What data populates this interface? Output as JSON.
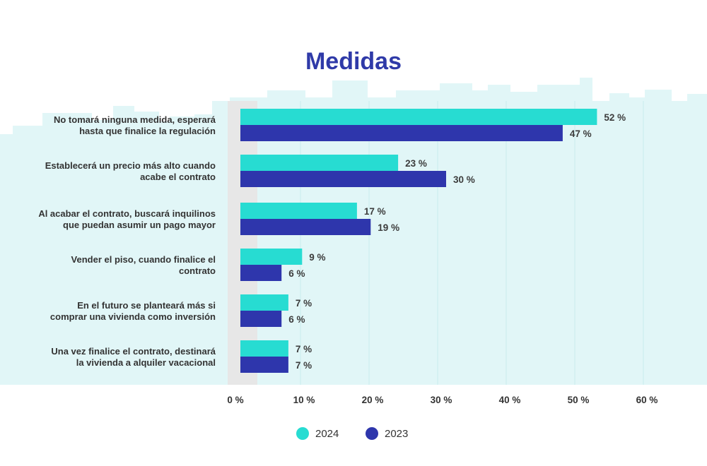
{
  "colors": {
    "series_2024": "#27dcd2",
    "series_2023": "#2e36ac",
    "title": "#2f3aa8",
    "skyline": "#e1f6f7",
    "grid": "#c9ecee",
    "zero_band": "#e7e7e7"
  },
  "chart_data": {
    "type": "bar",
    "orientation": "horizontal",
    "title": "Medidas",
    "categories": [
      [
        "No tomará ninguna medida, esperará",
        "hasta que finalice la regulación"
      ],
      [
        "Establecerá un precio más alto cuando",
        "acabe el contrato"
      ],
      [
        "Al acabar el contrato, buscará inquilinos",
        "que puedan asumir un pago mayor"
      ],
      [
        "Vender el piso, cuando finalice el",
        "contrato"
      ],
      [
        "En el futuro se planteará más si",
        "comprar una vivienda como inversión"
      ],
      [
        "Una vez finalice el contrato, destinará",
        "la vivienda a alquiler vacacional"
      ]
    ],
    "series": [
      {
        "name": "2024",
        "values": [
          52,
          23,
          17,
          9,
          7,
          7
        ],
        "labels": [
          "52 %",
          "23 %",
          "17 %",
          "9 %",
          "7 %",
          "7 %"
        ]
      },
      {
        "name": "2023",
        "values": [
          47,
          30,
          19,
          6,
          6,
          7
        ],
        "labels": [
          "47 %",
          "30 %",
          "19 %",
          "6 %",
          "6 %",
          "7 %"
        ]
      }
    ],
    "x_ticks": [
      0,
      10,
      20,
      30,
      40,
      50,
      60
    ],
    "x_tick_labels": [
      "0 %",
      "10 %",
      "20 %",
      "30 %",
      "40 %",
      "50 %",
      "60 %"
    ],
    "xlim": [
      0,
      60
    ],
    "grid": true,
    "legend_position": "bottom-center"
  }
}
